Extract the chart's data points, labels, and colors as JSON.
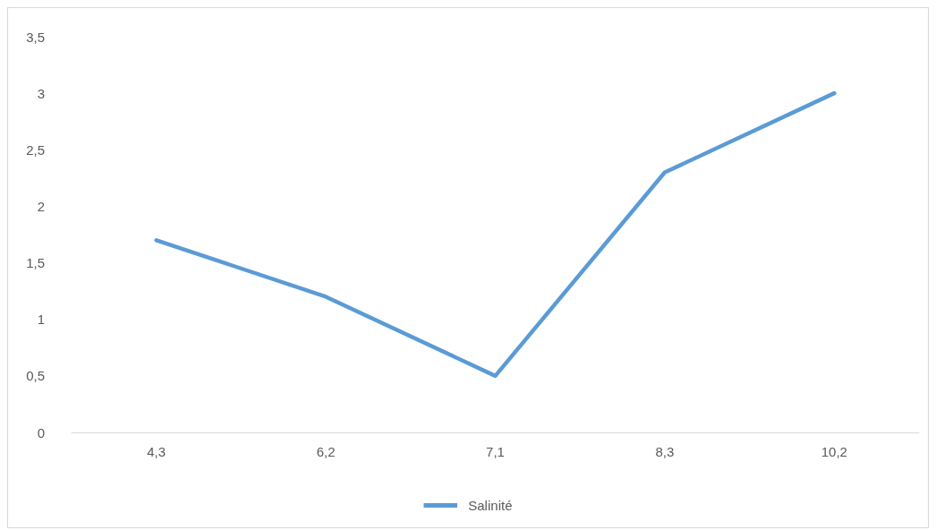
{
  "chart_data": {
    "type": "line",
    "categories": [
      "4,3",
      "6,2",
      "7,1",
      "8,3",
      "10,2"
    ],
    "series": [
      {
        "name": "Salinité",
        "color": "#5b9bd5",
        "values": [
          1.7,
          1.2,
          0.5,
          2.3,
          3.0
        ]
      }
    ],
    "ylim": [
      0,
      3.5
    ],
    "yticks": [
      0,
      {
        "value": 0.5,
        "label": "0,5"
      },
      1,
      {
        "value": 1.5,
        "label": "1,5"
      },
      2,
      {
        "value": 2.5,
        "label": "2,5"
      },
      3,
      {
        "value": 3.5,
        "label": "3,5"
      }
    ],
    "grid": false,
    "legend": "bottom",
    "marker": "none",
    "line_style": "solid"
  }
}
